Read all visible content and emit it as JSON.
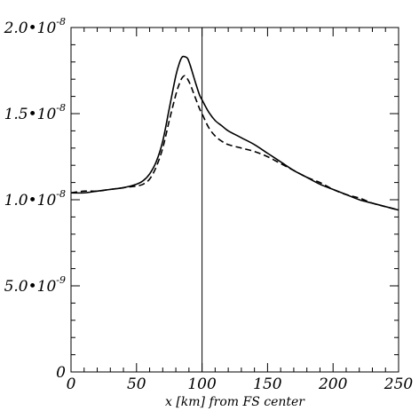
{
  "chart_data": {
    "type": "line",
    "title": "",
    "xlabel": "x [km] from FS center",
    "ylabel": "",
    "xlim": [
      0,
      250
    ],
    "ylim": [
      0,
      2e-08
    ],
    "grid": false,
    "legend": "none",
    "x_ticks": [
      0,
      50,
      100,
      150,
      200,
      250
    ],
    "x_tick_labels": [
      "0",
      "50",
      "100",
      "150",
      "200",
      "250"
    ],
    "y_ticks": [
      0,
      5e-09,
      1e-08,
      1.5e-08,
      2e-08
    ],
    "y_tick_labels": [
      {
        "mantissa": "0",
        "exponent": ""
      },
      {
        "mantissa": "5.0•10",
        "exponent": "-9"
      },
      {
        "mantissa": "1.0•10",
        "exponent": "-8"
      },
      {
        "mantissa": "1.5•10",
        "exponent": "-8"
      },
      {
        "mantissa": "2.0•10",
        "exponent": "-8"
      }
    ],
    "vertical_line_x": 100,
    "line_color": "#000000",
    "series": [
      {
        "style": "solid",
        "x": [
          0,
          10,
          20,
          30,
          40,
          50,
          55,
          60,
          65,
          70,
          75,
          80,
          83,
          85,
          87,
          89,
          91,
          93,
          95,
          98,
          100,
          105,
          110,
          115,
          120,
          130,
          140,
          150,
          160,
          170,
          180,
          190,
          200,
          210,
          220,
          230,
          240,
          250
        ],
        "y": [
          1.04e-08,
          1.04e-08,
          1.05e-08,
          1.06e-08,
          1.07e-08,
          1.09e-08,
          1.11e-08,
          1.15e-08,
          1.22e-08,
          1.34e-08,
          1.53e-08,
          1.72e-08,
          1.8e-08,
          1.83e-08,
          1.83e-08,
          1.82e-08,
          1.78e-08,
          1.73e-08,
          1.68e-08,
          1.61e-08,
          1.58e-08,
          1.51e-08,
          1.46e-08,
          1.43e-08,
          1.4e-08,
          1.36e-08,
          1.32e-08,
          1.27e-08,
          1.22e-08,
          1.17e-08,
          1.13e-08,
          1.09e-08,
          1.06e-08,
          1.03e-08,
          1e-08,
          9.8e-09,
          9.6e-09,
          9.4e-09
        ]
      },
      {
        "style": "dashed",
        "x": [
          0,
          10,
          20,
          30,
          40,
          50,
          55,
          60,
          65,
          70,
          75,
          80,
          83,
          85,
          87,
          89,
          91,
          93,
          95,
          98,
          100,
          105,
          110,
          115,
          120,
          130,
          140,
          150,
          160,
          170,
          180,
          190,
          200,
          210,
          220,
          230,
          240,
          250
        ],
        "y": [
          1.04e-08,
          1.05e-08,
          1.05e-08,
          1.06e-08,
          1.07e-08,
          1.08e-08,
          1.09e-08,
          1.12e-08,
          1.19e-08,
          1.3e-08,
          1.46e-08,
          1.61e-08,
          1.68e-08,
          1.71e-08,
          1.72e-08,
          1.7e-08,
          1.67e-08,
          1.63e-08,
          1.59e-08,
          1.53e-08,
          1.5e-08,
          1.42e-08,
          1.37e-08,
          1.34e-08,
          1.32e-08,
          1.3e-08,
          1.28e-08,
          1.25e-08,
          1.21e-08,
          1.17e-08,
          1.13e-08,
          1.1e-08,
          1.06e-08,
          1.03e-08,
          1.01e-08,
          9.8e-09,
          9.6e-09,
          9.4e-09
        ]
      }
    ]
  }
}
